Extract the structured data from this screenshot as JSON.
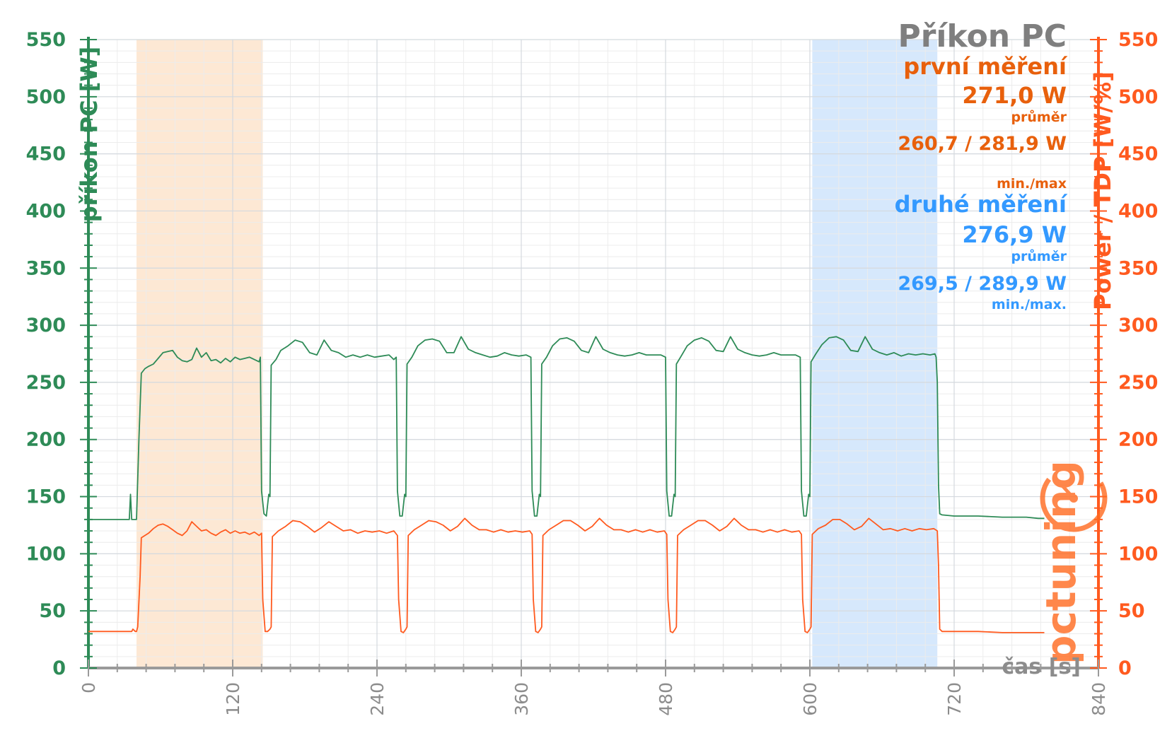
{
  "chart_data": {
    "type": "line",
    "title": "Příkon PC",
    "xlabel": "čas [s]",
    "ylabel_left": "příkon PC [W]",
    "ylabel_right": "Power / TDP [W/%]",
    "xlim": [
      0,
      840
    ],
    "ylim_left": [
      0,
      550
    ],
    "ylim_right": [
      0,
      550
    ],
    "xticks": [
      "0",
      "120",
      "240",
      "360",
      "480",
      "600",
      "720",
      "840"
    ],
    "yticks_left": [
      "0",
      "50",
      "100",
      "150",
      "200",
      "250",
      "300",
      "350",
      "400",
      "450",
      "500",
      "550"
    ],
    "yticks_right": [
      "0",
      "50",
      "100",
      "150",
      "200",
      "250",
      "300",
      "350",
      "400",
      "450",
      "500",
      "550"
    ],
    "grid": true,
    "highlight_ranges": [
      {
        "series": "první měření",
        "x": [
          40,
          145
        ],
        "color": "#fde4cc"
      },
      {
        "series": "druhé měření",
        "x": [
          602,
          706
        ],
        "color": "#cfe4fb"
      }
    ],
    "series": [
      {
        "axis": "left",
        "color": "#2e8b57",
        "segments": [
          {
            "x": [
              0,
              34,
              35,
              36,
              38,
              39,
              40
            ],
            "y": [
              130,
              130,
              152,
              130,
              130,
              130,
              130
            ]
          },
          {
            "x": [
              40,
              42,
              44,
              47,
              50,
              54,
              58,
              62,
              66,
              70,
              74,
              78,
              82,
              86,
              90,
              94,
              98,
              102,
              106,
              110,
              114,
              118,
              122,
              126,
              130,
              134,
              138,
              142,
              143
            ],
            "y": [
              130,
              200,
              258,
              262,
              264,
              266,
              271,
              276,
              277,
              278,
              272,
              269,
              268,
              270,
              280,
              272,
              276,
              269,
              270,
              267,
              271,
              268,
              272,
              270,
              271,
              272,
              270,
              268,
              272
            ]
          },
          {
            "x": [
              143,
              144,
              146,
              148,
              150,
              151
            ],
            "y": [
              272,
              155,
              135,
              133,
              152,
              150
            ]
          },
          {
            "x": [
              151,
              152,
              156,
              160,
              166,
              172,
              178,
              184,
              190,
              196,
              202,
              208,
              214,
              220,
              226,
              232,
              238,
              244,
              250,
              254,
              256
            ],
            "y": [
              150,
              265,
              270,
              278,
              282,
              287,
              285,
              276,
              274,
              287,
              278,
              276,
              272,
              274,
              272,
              274,
              272,
              273,
              274,
              270,
              272
            ]
          },
          {
            "x": [
              256,
              257,
              259,
              261,
              263,
              264
            ],
            "y": [
              272,
              155,
              133,
              133,
              152,
              150
            ]
          },
          {
            "x": [
              264,
              265,
              269,
              274,
              280,
              286,
              292,
              298,
              304,
              310,
              316,
              322,
              328,
              334,
              340,
              346,
              352,
              358,
              364,
              368
            ],
            "y": [
              150,
              266,
              272,
              282,
              287,
              288,
              286,
              276,
              276,
              290,
              279,
              276,
              274,
              272,
              273,
              276,
              274,
              273,
              274,
              272
            ]
          },
          {
            "x": [
              368,
              369,
              371,
              373,
              375,
              376
            ],
            "y": [
              272,
              155,
              133,
              133,
              152,
              150
            ]
          },
          {
            "x": [
              376,
              377,
              381,
              386,
              392,
              398,
              404,
              410,
              416,
              422,
              428,
              434,
              440,
              446,
              452,
              458,
              464,
              470,
              476,
              480
            ],
            "y": [
              150,
              266,
              272,
              282,
              288,
              289,
              286,
              278,
              276,
              290,
              279,
              276,
              274,
              273,
              274,
              276,
              274,
              274,
              274,
              272
            ]
          },
          {
            "x": [
              480,
              481,
              483,
              485,
              487,
              488
            ],
            "y": [
              272,
              155,
              133,
              133,
              152,
              150
            ]
          },
          {
            "x": [
              488,
              489,
              493,
              498,
              504,
              510,
              516,
              522,
              528,
              534,
              540,
              546,
              552,
              558,
              564,
              570,
              576,
              582,
              588,
              592
            ],
            "y": [
              150,
              266,
              273,
              282,
              287,
              289,
              286,
              278,
              277,
              290,
              279,
              276,
              274,
              273,
              274,
              276,
              274,
              274,
              274,
              272
            ]
          },
          {
            "x": [
              592,
              593,
              595,
              597,
              599,
              600
            ],
            "y": [
              272,
              155,
              133,
              133,
              152,
              150
            ]
          },
          {
            "x": [
              600,
              601,
              605,
              610,
              616,
              622,
              628,
              634,
              640,
              646,
              652,
              658,
              664,
              670,
              676,
              682,
              688,
              694,
              700,
              704,
              705
            ],
            "y": [
              150,
              268,
              275,
              283,
              289,
              290,
              287,
              278,
              277,
              290,
              279,
              276,
              274,
              276,
              273,
              275,
              274,
              275,
              274,
              275,
              272
            ]
          },
          {
            "x": [
              705,
              706,
              707,
              708,
              710,
              720,
              740,
              760,
              780,
              790,
              795
            ],
            "y": [
              272,
              250,
              160,
              135,
              134,
              133,
              133,
              132,
              132,
              131,
              131
            ]
          }
        ]
      },
      {
        "axis": "right",
        "color": "#ff5a1f",
        "segments": [
          {
            "x": [
              0,
              36,
              37,
              39,
              40,
              41
            ],
            "y": [
              32,
              32,
              34,
              32,
              32,
              36
            ]
          },
          {
            "x": [
              41,
              43,
              44,
              47,
              50,
              54,
              58,
              62,
              66,
              70,
              74,
              78,
              82,
              86,
              90,
              94,
              98,
              102,
              106,
              110,
              114,
              118,
              122,
              126,
              130,
              134,
              138,
              142,
              144
            ],
            "y": [
              36,
              80,
              114,
              116,
              118,
              122,
              125,
              126,
              124,
              121,
              118,
              116,
              120,
              128,
              124,
              120,
              121,
              118,
              116,
              119,
              121,
              118,
              120,
              118,
              119,
              117,
              119,
              116,
              118
            ]
          },
          {
            "x": [
              144,
              145,
              147,
              149,
              151,
              152
            ],
            "y": [
              118,
              60,
              32,
              32,
              34,
              36
            ]
          },
          {
            "x": [
              152,
              153,
              158,
              164,
              170,
              176,
              182,
              188,
              194,
              200,
              206,
              212,
              218,
              224,
              230,
              236,
              242,
              248,
              254,
              257
            ],
            "y": [
              36,
              115,
              120,
              124,
              129,
              128,
              124,
              119,
              123,
              128,
              124,
              120,
              121,
              118,
              120,
              119,
              120,
              118,
              120,
              116
            ]
          },
          {
            "x": [
              257,
              258,
              260,
              262,
              264,
              265
            ],
            "y": [
              116,
              60,
              32,
              31,
              34,
              36
            ]
          },
          {
            "x": [
              265,
              266,
              271,
              277,
              283,
              289,
              295,
              301,
              307,
              313,
              319,
              325,
              331,
              337,
              343,
              349,
              355,
              361,
              367,
              369
            ],
            "y": [
              36,
              116,
              121,
              125,
              129,
              128,
              125,
              120,
              124,
              131,
              125,
              121,
              121,
              119,
              121,
              119,
              120,
              119,
              120,
              117
            ]
          },
          {
            "x": [
              369,
              370,
              372,
              374,
              376,
              377
            ],
            "y": [
              117,
              60,
              32,
              31,
              34,
              36
            ]
          },
          {
            "x": [
              377,
              378,
              383,
              389,
              395,
              401,
              407,
              413,
              419,
              425,
              431,
              437,
              443,
              449,
              455,
              461,
              467,
              473,
              479,
              481
            ],
            "y": [
              36,
              116,
              121,
              125,
              129,
              129,
              125,
              120,
              124,
              131,
              125,
              121,
              121,
              119,
              121,
              119,
              121,
              119,
              120,
              117
            ]
          },
          {
            "x": [
              481,
              482,
              484,
              486,
              488,
              489
            ],
            "y": [
              117,
              60,
              32,
              31,
              34,
              36
            ]
          },
          {
            "x": [
              489,
              490,
              495,
              501,
              507,
              513,
              519,
              525,
              531,
              537,
              543,
              549,
              555,
              561,
              567,
              573,
              579,
              585,
              591,
              593
            ],
            "y": [
              36,
              116,
              121,
              125,
              129,
              129,
              125,
              120,
              124,
              131,
              125,
              121,
              121,
              119,
              121,
              119,
              121,
              119,
              120,
              117
            ]
          },
          {
            "x": [
              593,
              594,
              596,
              598,
              600,
              601
            ],
            "y": [
              117,
              60,
              32,
              31,
              34,
              36
            ]
          },
          {
            "x": [
              601,
              602,
              607,
              613,
              619,
              625,
              631,
              637,
              643,
              649,
              655,
              661,
              667,
              673,
              679,
              685,
              691,
              697,
              703,
              706
            ],
            "y": [
              36,
              117,
              122,
              125,
              130,
              130,
              126,
              121,
              124,
              131,
              126,
              121,
              122,
              120,
              122,
              120,
              122,
              121,
              122,
              120
            ]
          },
          {
            "x": [
              706,
              707,
              708,
              710,
              720,
              740,
              760,
              780,
              795
            ],
            "y": [
              120,
              90,
              34,
              32,
              32,
              32,
              31,
              31,
              31
            ]
          }
        ]
      }
    ]
  },
  "annotations": {
    "first": {
      "label": "první měření",
      "avg": "271,0 W",
      "avg_caption": "průměr",
      "minmax": "260,7 / 281,9 W",
      "minmax_caption": "min./max"
    },
    "second": {
      "label": "druhé měření",
      "avg": "276,9 W",
      "avg_caption": "průměr",
      "minmax": "269,5 / 289,9 W",
      "minmax_caption": "min./max."
    }
  },
  "watermark": {
    "text": "pctuning",
    "icon": "stopwatch-icon"
  }
}
